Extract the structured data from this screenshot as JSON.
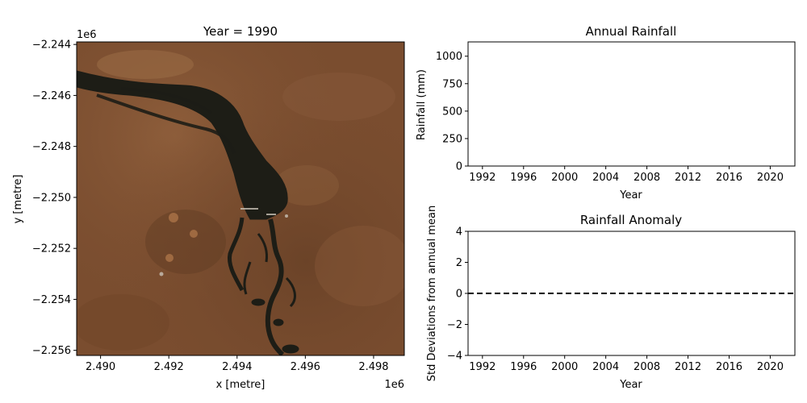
{
  "chart_data": [
    {
      "type": "image",
      "title": "Year = 1990",
      "xlabel": "x [metre]",
      "ylabel": "y [metre]",
      "x_offset_label": "1e6",
      "y_offset_label": "1e6",
      "xlim": [
        2.4893,
        2.4989
      ],
      "ylim": [
        -2.2562,
        -2.2439
      ],
      "xticks": [
        2.49,
        2.492,
        2.494,
        2.496,
        2.498
      ],
      "xtick_labels": [
        "2.490",
        "2.492",
        "2.494",
        "2.496",
        "2.498"
      ],
      "yticks": [
        -2.244,
        -2.246,
        -2.248,
        -2.25,
        -2.252,
        -2.254,
        -2.256
      ],
      "ytick_labels": [
        "−2.244",
        "−2.246",
        "−2.248",
        "−2.250",
        "−2.252",
        "−2.254",
        "−2.256"
      ]
    },
    {
      "type": "bar",
      "title": "Annual Rainfall",
      "xlabel": "Year",
      "ylabel": "Rainfall (mm)",
      "xlim": [
        1990.6,
        2022.4
      ],
      "ylim": [
        0,
        1130
      ],
      "xticks": [
        1992,
        1996,
        2000,
        2004,
        2008,
        2012,
        2016,
        2020
      ],
      "xtick_labels": [
        "1992",
        "1996",
        "2000",
        "2004",
        "2008",
        "2012",
        "2016",
        "2020"
      ],
      "yticks": [
        0,
        250,
        500,
        750,
        1000
      ],
      "ytick_labels": [
        "0",
        "250",
        "500",
        "750",
        "1000"
      ],
      "series": []
    },
    {
      "type": "line",
      "title": "Rainfall Anomaly",
      "xlabel": "Year",
      "ylabel": "Std Deviations from annual mean",
      "xlim": [
        1990.6,
        2022.4
      ],
      "ylim": [
        -4,
        4
      ],
      "xticks": [
        1992,
        1996,
        2000,
        2004,
        2008,
        2012,
        2016,
        2020
      ],
      "xtick_labels": [
        "1992",
        "1996",
        "2000",
        "2004",
        "2008",
        "2012",
        "2016",
        "2020"
      ],
      "yticks": [
        4,
        2,
        0,
        -2,
        -4
      ],
      "ytick_labels": [
        "4",
        "2",
        "0",
        "−2",
        "−4"
      ],
      "reference_line": {
        "y": 0,
        "style": "dashed",
        "color": "#000000"
      },
      "series": []
    }
  ],
  "colors": {
    "axes": "#000000",
    "imagery_base": "#7a4d2f",
    "water": "#1d1d16"
  }
}
